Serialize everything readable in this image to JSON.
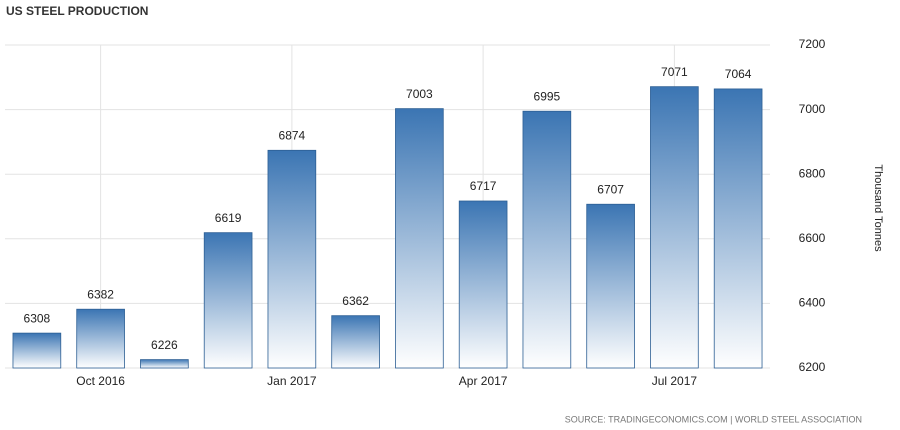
{
  "chart_data": {
    "type": "bar",
    "title": "US STEEL PRODUCTION",
    "categories": [
      null,
      "Oct 2016",
      null,
      null,
      "Jan 2017",
      null,
      null,
      "Apr 2017",
      null,
      null,
      "Jul 2017",
      null
    ],
    "values": [
      6308,
      6382,
      6226,
      6619,
      6874,
      6362,
      7003,
      6717,
      6995,
      6707,
      7071,
      7064
    ],
    "color": "#3b75b3",
    "y_label": "Thousand Tonnes",
    "ylim": [
      6200,
      7200
    ],
    "yticks": [
      6200,
      6400,
      6600,
      6800,
      7000,
      7200
    ],
    "grid": true,
    "source": "SOURCE: TRADINGECONOMICS.COM | WORLD STEEL ASSOCIATION"
  }
}
